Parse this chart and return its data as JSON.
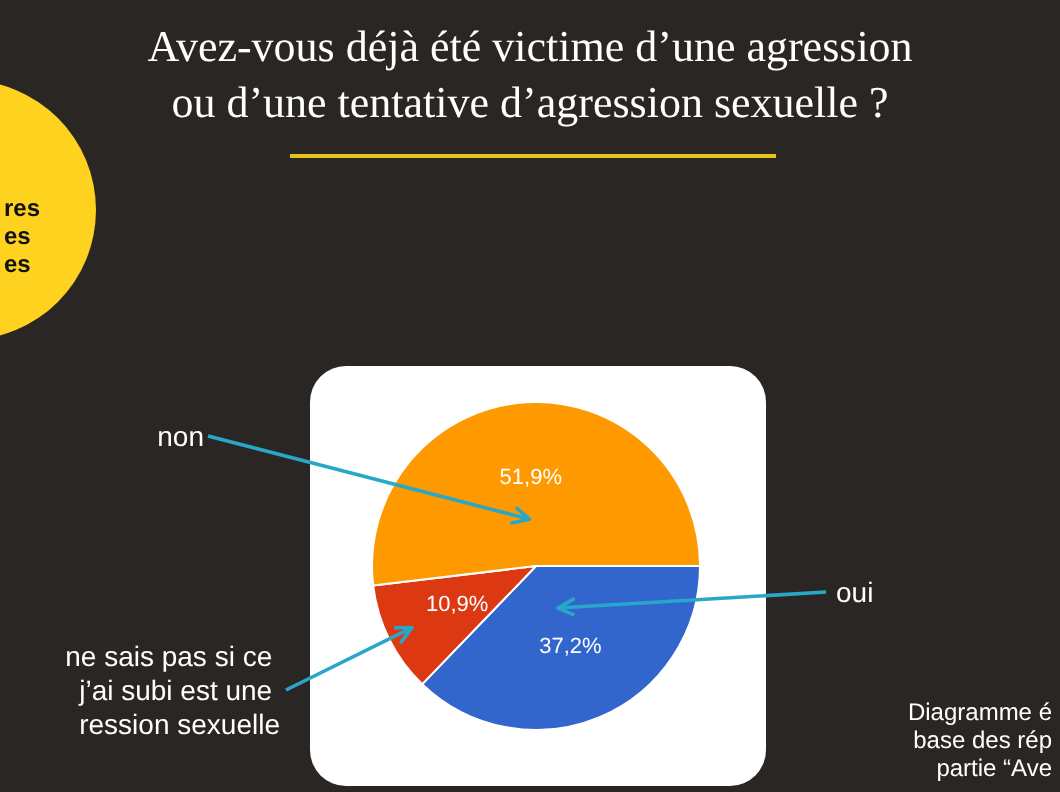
{
  "chart_data": {
    "type": "pie",
    "title": "Avez-vous déjà été victime d’une agression\nou d’une tentative d’agression sexuelle ?",
    "categories": [
      "oui",
      "ne sais pas si ce j’ai subi est une ression sexuelle",
      "non"
    ],
    "values": [
      37.2,
      10.9,
      51.9
    ],
    "colors": [
      "#3366cc",
      "#dc3912",
      "#ff9900"
    ],
    "value_labels": [
      "37,2%",
      "10,9%",
      "51,9%"
    ],
    "annotations": [
      "res\nes\nes",
      "Diagramme é\nbase des rép\npartie “Ave"
    ]
  }
}
